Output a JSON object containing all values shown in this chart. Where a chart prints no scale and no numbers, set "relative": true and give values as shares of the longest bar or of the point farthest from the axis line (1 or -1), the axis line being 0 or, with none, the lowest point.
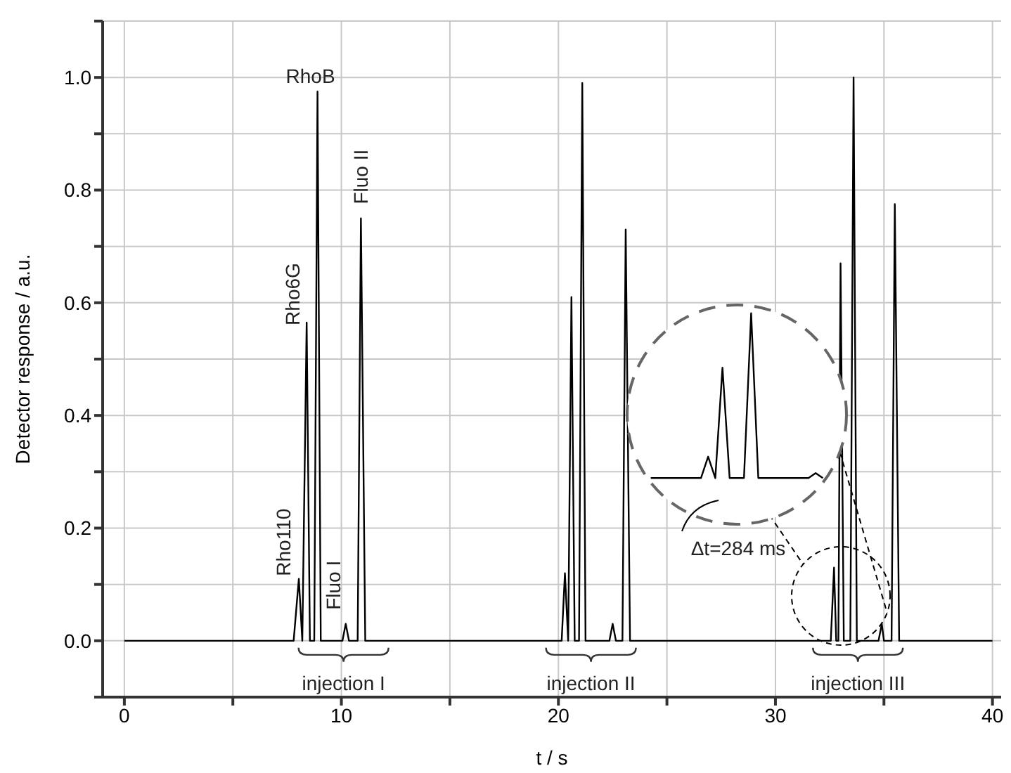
{
  "chart_data": [
    {
      "type": "line",
      "xlabel": "t / s",
      "ylabel": "Detector response / a.u.",
      "x": [
        0,
        7.8,
        8.04,
        8.2,
        8.4,
        8.55,
        8.75,
        8.9,
        9.05,
        10.05,
        10.2,
        10.35,
        10.75,
        10.9,
        11.1,
        20.15,
        20.3,
        20.45,
        20.6,
        20.75,
        20.95,
        21.1,
        21.25,
        22.35,
        22.5,
        22.65,
        22.95,
        23.1,
        23.3,
        32.55,
        32.7,
        32.8,
        32.9,
        33.0,
        33.15,
        33.45,
        33.6,
        33.75,
        34.75,
        34.9,
        35.0,
        35.35,
        35.5,
        35.7,
        40
      ],
      "series": [
        {
          "color": "#000000",
          "values": [
            0,
            0,
            0.11,
            0,
            0.565,
            0,
            0,
            0.975,
            0,
            0,
            0.03,
            0,
            0,
            0.75,
            0,
            0,
            0.12,
            0,
            0.61,
            0,
            0,
            0.99,
            0,
            0,
            0.03,
            0,
            0,
            0.73,
            0,
            0,
            0.13,
            0,
            0,
            0.67,
            0,
            0,
            1.0,
            0,
            0,
            0.03,
            0,
            0,
            0.775,
            0,
            0
          ]
        }
      ],
      "xlim": [
        -1,
        40.4
      ],
      "ylim": [
        -0.1,
        1.1
      ],
      "xticks": [
        0,
        {
          "value": 5,
          "label": null
        },
        10,
        {
          "value": 15,
          "label": null
        },
        20,
        {
          "value": 25,
          "label": null
        },
        30,
        {
          "value": 35,
          "label": null
        },
        40
      ],
      "yticks": [
        {
          "value": -0.1,
          "label": null
        },
        {
          "value": 0,
          "label": "0.0"
        },
        {
          "value": 0.1,
          "label": null
        },
        0.2,
        {
          "value": 0.3,
          "label": null
        },
        0.4,
        {
          "value": 0.5,
          "label": null
        },
        0.6,
        {
          "value": 0.7,
          "label": null
        },
        0.8,
        {
          "value": 0.9,
          "label": null
        },
        {
          "value": 1,
          "label": "1.0"
        },
        {
          "value": 1.1,
          "label": null
        }
      ],
      "grid": true,
      "line_style": "solid",
      "marker": "none",
      "annotations": [
        {
          "text": "Rho110",
          "x": 8.04,
          "y": 0.11
        },
        {
          "text": "Rho6G",
          "x": 8.4,
          "y": 0.565
        },
        {
          "text": "RhoB",
          "x": 8.9,
          "y": 0.975
        },
        {
          "text": "Fluo I",
          "x": 10.2,
          "y": 0.03
        },
        {
          "text": "Fluo II",
          "x": 10.9,
          "y": 0.75
        },
        "Δt=284 ms",
        "injection I",
        "injection II",
        "injection III"
      ]
    },
    {
      "type": "line",
      "categories": [
        null,
        null,
        null,
        null,
        null,
        null,
        null,
        null,
        null,
        null,
        null,
        null,
        null,
        null,
        null,
        null,
        null,
        null,
        null,
        null,
        null,
        null,
        null,
        null,
        null
      ],
      "series": [
        {
          "color": "#000000",
          "values": [
            0,
            0,
            0,
            0,
            0,
            0,
            0,
            0,
            0.13,
            0,
            0.67,
            0,
            0,
            0,
            1.0,
            0,
            0,
            0,
            0,
            0,
            0,
            0,
            0,
            0.03,
            0
          ]
        }
      ],
      "relative": true,
      "line_style": "solid",
      "marker": "none"
    }
  ]
}
